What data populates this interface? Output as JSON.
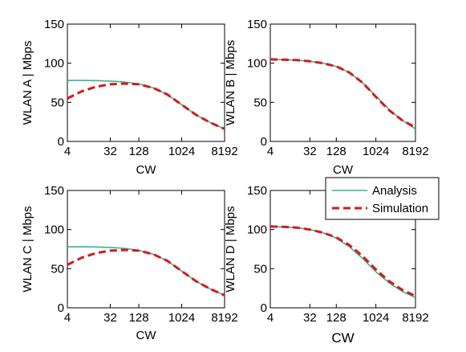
{
  "chart_data": [
    {
      "type": "line",
      "title": "",
      "xlabel": "CW",
      "ylabel": "WLAN A | Mbps",
      "x_scale": "log2",
      "xlim": [
        4,
        8192
      ],
      "ylim": [
        0,
        150
      ],
      "x_ticks": [
        4,
        32,
        128,
        1024,
        8192
      ],
      "x_tick_labels": [
        "4",
        "32",
        "128",
        "1024",
        "8192"
      ],
      "y_ticks": [
        0,
        50,
        100,
        150
      ],
      "y_tick_labels": [
        "0",
        "50",
        "100",
        "150"
      ],
      "grid": false,
      "series": [
        {
          "name": "Analysis",
          "color": "#3cb391",
          "style": "solid",
          "x": [
            4,
            8,
            16,
            32,
            64,
            128,
            256,
            512,
            1024,
            2048,
            4096,
            8192
          ],
          "y": [
            78,
            78,
            77.8,
            77.2,
            76,
            73.5,
            68.5,
            60,
            47,
            34,
            24,
            16
          ]
        },
        {
          "name": "Simulation",
          "color": "#d7191c",
          "style": "dashed",
          "x": [
            4,
            8,
            16,
            32,
            64,
            128,
            256,
            512,
            1024,
            2048,
            4096,
            8192
          ],
          "y": [
            55,
            64,
            70,
            73,
            74,
            73,
            68.5,
            60,
            47,
            34,
            24,
            16
          ]
        }
      ]
    },
    {
      "type": "line",
      "title": "",
      "xlabel": "CW",
      "ylabel": "WLAN B | Mbps",
      "x_scale": "log2",
      "xlim": [
        4,
        8192
      ],
      "ylim": [
        0,
        150
      ],
      "x_ticks": [
        4,
        32,
        128,
        1024,
        8192
      ],
      "x_tick_labels": [
        "4",
        "32",
        "128",
        "1024",
        "8192"
      ],
      "y_ticks": [
        0,
        50,
        100,
        150
      ],
      "y_tick_labels": [
        "0",
        "50",
        "100",
        "150"
      ],
      "grid": false,
      "series": [
        {
          "name": "Analysis",
          "color": "#3cb391",
          "style": "solid",
          "x": [
            4,
            8,
            16,
            32,
            64,
            128,
            256,
            512,
            1024,
            2048,
            4096,
            8192
          ],
          "y": [
            105,
            104.5,
            104,
            102.5,
            100,
            96,
            88,
            75,
            58,
            41,
            27,
            16
          ]
        },
        {
          "name": "Simulation",
          "color": "#d7191c",
          "style": "dashed",
          "x": [
            4,
            8,
            16,
            32,
            64,
            128,
            256,
            512,
            1024,
            2048,
            4096,
            8192
          ],
          "y": [
            105,
            104.5,
            104,
            102.5,
            100,
            96,
            88,
            75,
            57,
            40,
            27,
            18
          ]
        }
      ]
    },
    {
      "type": "line",
      "title": "",
      "xlabel": "CW",
      "ylabel": "WLAN C | Mbps",
      "x_scale": "log2",
      "xlim": [
        4,
        8192
      ],
      "ylim": [
        0,
        150
      ],
      "x_ticks": [
        4,
        32,
        128,
        1024,
        8192
      ],
      "x_tick_labels": [
        "4",
        "32",
        "128",
        "1024",
        "8192"
      ],
      "y_ticks": [
        0,
        50,
        100,
        150
      ],
      "y_tick_labels": [
        "0",
        "50",
        "100",
        "150"
      ],
      "grid": false,
      "series": [
        {
          "name": "Analysis",
          "color": "#3cb391",
          "style": "solid",
          "x": [
            4,
            8,
            16,
            32,
            64,
            128,
            256,
            512,
            1024,
            2048,
            4096,
            8192
          ],
          "y": [
            78,
            78,
            77.8,
            77.2,
            76,
            73.5,
            68.5,
            60,
            47,
            34,
            24,
            16
          ]
        },
        {
          "name": "Simulation",
          "color": "#d7191c",
          "style": "dashed",
          "x": [
            4,
            8,
            16,
            32,
            64,
            128,
            256,
            512,
            1024,
            2048,
            4096,
            8192
          ],
          "y": [
            55,
            64,
            70,
            73,
            74,
            73,
            68.5,
            60,
            47,
            34,
            24,
            16
          ]
        }
      ]
    },
    {
      "type": "line",
      "title": "",
      "xlabel": "CW",
      "ylabel": "WLAN D | Mbps",
      "x_scale": "log2",
      "xlim": [
        4,
        8192
      ],
      "ylim": [
        0,
        150
      ],
      "x_ticks": [
        4,
        32,
        128,
        1024,
        8192
      ],
      "x_tick_labels": [
        "4",
        "32",
        "128",
        "1024",
        "8192"
      ],
      "y_ticks": [
        0,
        50,
        100,
        150
      ],
      "y_tick_labels": [
        "0",
        "50",
        "100",
        "150"
      ],
      "grid": false,
      "legend": {
        "position": "top-right",
        "entries": [
          "Analysis",
          "Simulation"
        ]
      },
      "series": [
        {
          "name": "Analysis",
          "color": "#3cb391",
          "style": "solid",
          "x": [
            4,
            8,
            16,
            32,
            64,
            128,
            256,
            512,
            1024,
            2048,
            4096,
            8192
          ],
          "y": [
            104,
            103.5,
            102.5,
            100,
            96,
            89,
            78,
            63,
            46,
            32,
            21,
            13
          ]
        },
        {
          "name": "Simulation",
          "color": "#d7191c",
          "style": "dashed",
          "x": [
            4,
            8,
            16,
            32,
            64,
            128,
            256,
            512,
            1024,
            2048,
            4096,
            8192
          ],
          "y": [
            104,
            103.5,
            102.5,
            100,
            96,
            90,
            80,
            66,
            49,
            34,
            23,
            15
          ]
        }
      ]
    }
  ]
}
